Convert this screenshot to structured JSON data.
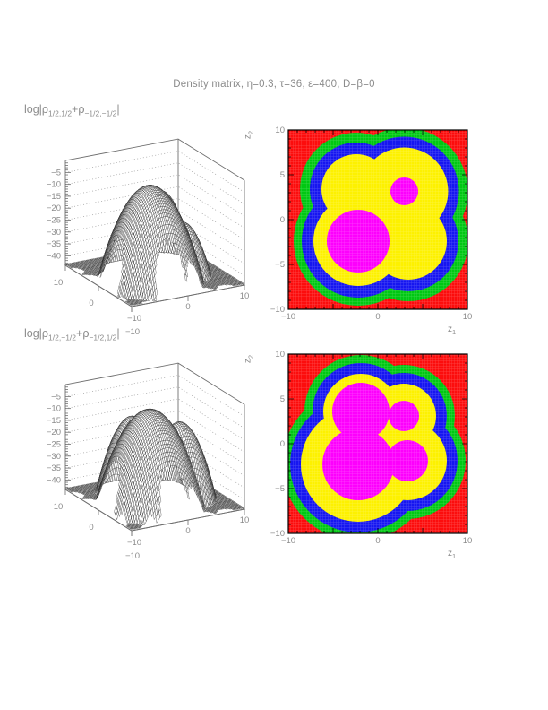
{
  "page_title": "Density matrix, η=0.3, τ=36, ε=400, D=β=0",
  "colors": {
    "text": "#8c8c8c",
    "mesh_line": "#2b2b2b",
    "mesh_fill": "#ffffff",
    "box_frame": "#6e6e6e",
    "wall_dots": "#9a9a9a",
    "contour_frame": "#000000",
    "red": "#fc0d0d",
    "green": "#00c813",
    "blue": "#1616f0",
    "yellow": "#fdf100",
    "magenta": "#fd00fd"
  },
  "surfaces": [
    {
      "title": {
        "pre": "log|ρ",
        "sub1": "1/2,1/2",
        "mid": "+ρ",
        "sub2": "−1/2,−1/2",
        "post": "|"
      }
    },
    {
      "title": {
        "pre": "log|ρ",
        "sub1": "1/2,−1/2",
        "mid": "+ρ",
        "sub2": "−1/2,1/2",
        "post": "|"
      }
    }
  ],
  "contours": [
    {
      "xlabel": {
        "base": "z",
        "sub": "1"
      },
      "ylabel": {
        "base": "z",
        "sub": "2"
      }
    },
    {
      "xlabel": {
        "base": "z",
        "sub": "1"
      },
      "ylabel": {
        "base": "z",
        "sub": "2"
      }
    }
  ],
  "chart_data": [
    {
      "id": "surface-log-rho-diagonal-sum",
      "type": "surface3d",
      "title_text": "log|ρ1/2,1/2+ρ−1/2,−1/2|",
      "x_range": [
        -10,
        10
      ],
      "y_range": [
        -10,
        10
      ],
      "z_axis_ticks": [
        -5,
        -10,
        -15,
        -20,
        -25,
        -30,
        -35,
        -40
      ],
      "x_axis_labeled_ticks": [
        -10,
        0,
        10
      ],
      "y_axis_labeled_ticks": [
        10,
        0,
        -10
      ],
      "z_floor": -43.5,
      "dome_components": [
        {
          "cx": -2.2,
          "cy": -2.4,
          "peak": -3.5,
          "fall": 0.595
        },
        {
          "cx": 2.95,
          "cy": 3.15,
          "peak": -12.7,
          "fall": 1.25
        },
        {
          "cx": -2.4,
          "cy": 3.4,
          "peak": -22.5,
          "fall": 1.25
        },
        {
          "cx": 3.4,
          "cy": -2.4,
          "peak": -21.2,
          "fall": 1.13
        }
      ],
      "edge_notches": [
        {
          "edge": "y",
          "pos": -7.1,
          "r": 1.1
        },
        {
          "edge": "y",
          "pos": -2.8,
          "r": 2.6
        },
        {
          "edge": "y",
          "pos": 2.3,
          "r": 2.3
        },
        {
          "edge": "y",
          "pos": 6.6,
          "r": 1.5
        },
        {
          "edge": "x",
          "pos": -7.1,
          "r": 1.1
        },
        {
          "edge": "x",
          "pos": -2.8,
          "r": 2.6
        },
        {
          "edge": "x",
          "pos": 2.3,
          "r": 2.3
        },
        {
          "edge": "x",
          "pos": 6.6,
          "r": 1.5
        }
      ]
    },
    {
      "id": "contour-log-rho-diagonal-sum",
      "type": "filled_contour",
      "xlabel": "z1",
      "ylabel": "z2",
      "x_range": [
        -10,
        10
      ],
      "y_range": [
        -10,
        10
      ],
      "x_labeled_ticks": [
        -10,
        0,
        10
      ],
      "y_labeled_ticks": [
        -10,
        -5,
        0,
        5,
        10
      ],
      "minor_tick_step": 1,
      "band_colors_low_to_high": [
        "red",
        "green",
        "blue",
        "yellow",
        "magenta"
      ],
      "background_band": "red",
      "bands": [
        {
          "color": "green",
          "circles": [
            {
              "cx": -2.2,
              "cy": -2.4,
              "r": 7.2
            },
            {
              "cx": 2.95,
              "cy": 3.15,
              "r": 7.1
            },
            {
              "cx": -2.4,
              "cy": 3.4,
              "r": 6.3
            },
            {
              "cx": 3.4,
              "cy": -2.4,
              "r": 6.7
            }
          ]
        },
        {
          "color": "blue",
          "circles": [
            {
              "cx": -2.2,
              "cy": -2.4,
              "r": 6.3
            },
            {
              "cx": 2.95,
              "cy": 3.15,
              "r": 6.1
            },
            {
              "cx": -2.4,
              "cy": 3.4,
              "r": 5.2
            },
            {
              "cx": 3.4,
              "cy": -2.4,
              "r": 5.6
            }
          ]
        },
        {
          "color": "yellow",
          "circles": [
            {
              "cx": -2.2,
              "cy": -2.4,
              "r": 5.0
            },
            {
              "cx": 2.95,
              "cy": 3.15,
              "r": 4.9
            },
            {
              "cx": -2.4,
              "cy": 3.4,
              "r": 3.9
            },
            {
              "cx": 3.4,
              "cy": -2.4,
              "r": 4.3
            }
          ]
        },
        {
          "color": "magenta",
          "circles": [
            {
              "cx": -2.2,
              "cy": -2.4,
              "r": 3.5
            },
            {
              "cx": 2.95,
              "cy": 3.15,
              "r": 1.55
            }
          ]
        }
      ]
    },
    {
      "id": "surface-log-rho-offdiagonal-sum",
      "type": "surface3d",
      "title_text": "log|ρ1/2,−1/2+ρ−1/2,1/2|",
      "x_range": [
        -10,
        10
      ],
      "y_range": [
        -10,
        10
      ],
      "z_axis_ticks": [
        -5,
        -10,
        -15,
        -20,
        -25,
        -30,
        -35,
        -40
      ],
      "x_axis_labeled_ticks": [
        -10,
        0,
        10
      ],
      "y_axis_labeled_ticks": [
        10,
        0,
        -10
      ],
      "z_floor": -43.5,
      "dome_components": [
        {
          "cx": -2.2,
          "cy": -2.3,
          "peak": -3.5,
          "fall": 0.556
        },
        {
          "cx": -1.9,
          "cy": 3.6,
          "peak": -11.5,
          "fall": 1.03
        },
        {
          "cx": 3.3,
          "cy": -1.9,
          "peak": -11.5,
          "fall": 1.03
        },
        {
          "cx": 2.9,
          "cy": 3.1,
          "peak": -17.4,
          "fall": 1.95
        }
      ],
      "edge_notches": [
        {
          "edge": "y",
          "pos": -6.9,
          "r": 1.3
        },
        {
          "edge": "y",
          "pos": -2.2,
          "r": 2.5
        },
        {
          "edge": "y",
          "pos": 2.5,
          "r": 2.2
        },
        {
          "edge": "y",
          "pos": 6.6,
          "r": 1.5
        },
        {
          "edge": "x",
          "pos": -6.9,
          "r": 1.3
        },
        {
          "edge": "x",
          "pos": -2.2,
          "r": 2.5
        },
        {
          "edge": "x",
          "pos": 2.5,
          "r": 2.2
        },
        {
          "edge": "x",
          "pos": 6.6,
          "r": 1.5
        }
      ]
    },
    {
      "id": "contour-log-rho-offdiagonal-sum",
      "type": "filled_contour",
      "xlabel": "z1",
      "ylabel": "z2",
      "x_range": [
        -10,
        10
      ],
      "y_range": [
        -10,
        10
      ],
      "x_labeled_ticks": [
        -10,
        0,
        10
      ],
      "y_labeled_ticks": [
        -10,
        -5,
        0,
        5,
        10
      ],
      "minor_tick_step": 1,
      "band_colors_low_to_high": [
        "red",
        "green",
        "blue",
        "yellow",
        "magenta"
      ],
      "background_band": "red",
      "bands": [
        {
          "color": "green",
          "circles": [
            {
              "cx": -2.2,
              "cy": -2.3,
              "r": 8.5
            },
            {
              "cx": -1.9,
              "cy": 3.6,
              "r": 6.3
            },
            {
              "cx": 3.3,
              "cy": -1.9,
              "r": 6.5
            },
            {
              "cx": 2.9,
              "cy": 3.1,
              "r": 5.7
            }
          ]
        },
        {
          "color": "blue",
          "circles": [
            {
              "cx": -2.2,
              "cy": -2.3,
              "r": 7.6
            },
            {
              "cx": -1.9,
              "cy": 3.6,
              "r": 5.4
            },
            {
              "cx": 3.3,
              "cy": -1.9,
              "r": 5.6
            },
            {
              "cx": 2.9,
              "cy": 3.1,
              "r": 4.8
            }
          ]
        },
        {
          "color": "yellow",
          "circles": [
            {
              "cx": -2.2,
              "cy": -2.3,
              "r": 6.4
            },
            {
              "cx": -1.9,
              "cy": 3.6,
              "r": 4.2
            },
            {
              "cx": 3.3,
              "cy": -1.9,
              "r": 4.4
            },
            {
              "cx": 2.9,
              "cy": 3.1,
              "r": 3.6
            }
          ]
        },
        {
          "color": "magenta",
          "circles": [
            {
              "cx": -2.2,
              "cy": -2.3,
              "r": 4.0
            },
            {
              "cx": -1.9,
              "cy": 3.6,
              "r": 3.2
            },
            {
              "cx": 3.3,
              "cy": -1.9,
              "r": 2.3
            },
            {
              "cx": 2.9,
              "cy": 3.1,
              "r": 1.7
            }
          ]
        }
      ]
    }
  ]
}
